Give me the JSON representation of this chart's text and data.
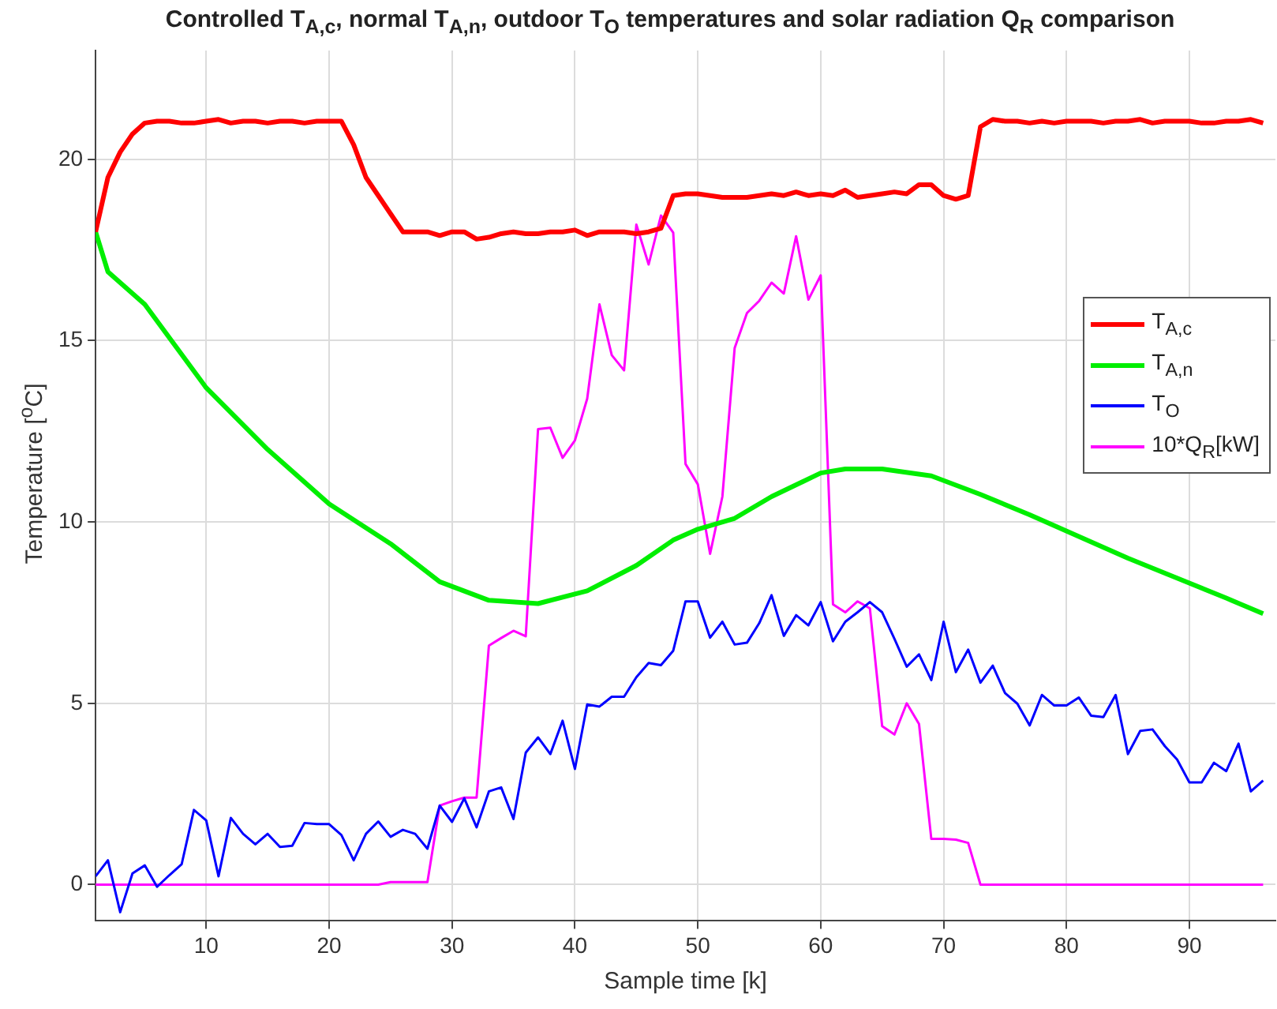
{
  "chart_data": {
    "type": "line",
    "title": "Controlled T$_{A,c}$, normal T$_{A,n}$, outdoor T$_{O}$ temperatures and solar radiation Q$_{R}$ comparison",
    "xlabel": "Sample time [k]",
    "ylabel": "Temperature [$^{o}$C]",
    "x": [
      1,
      2,
      3,
      4,
      5,
      6,
      7,
      8,
      9,
      10,
      11,
      12,
      13,
      14,
      15,
      16,
      17,
      18,
      19,
      20,
      21,
      22,
      23,
      24,
      25,
      26,
      27,
      28,
      29,
      30,
      31,
      32,
      33,
      34,
      35,
      36,
      37,
      38,
      39,
      40,
      41,
      42,
      43,
      44,
      45,
      46,
      47,
      48,
      49,
      50,
      51,
      52,
      53,
      54,
      55,
      56,
      57,
      58,
      59,
      60,
      61,
      62,
      63,
      64,
      65,
      66,
      67,
      68,
      69,
      70,
      71,
      72,
      73,
      74,
      75,
      76,
      77,
      78,
      79,
      80,
      81,
      82,
      83,
      84,
      85,
      86,
      87,
      88,
      89,
      90,
      91,
      92,
      93,
      94,
      95,
      96
    ],
    "series": [
      {
        "name": "T$_{A,c}$",
        "color": "#ff0000",
        "values": [
          18,
          19.5,
          20.2,
          20.7,
          21,
          21.05,
          21.05,
          21,
          21,
          21.05,
          21.1,
          21,
          21.05,
          21.05,
          21,
          21.05,
          21.05,
          21,
          21.05,
          21.05,
          21.05,
          20.4,
          19.5,
          19,
          18.5,
          18,
          18,
          18,
          17.9,
          18,
          18,
          17.8,
          17.85,
          17.95,
          18,
          17.95,
          17.95,
          18,
          18,
          18.05,
          17.9,
          18,
          18,
          18,
          17.95,
          18,
          18.1,
          19,
          19.05,
          19.05,
          19,
          18.95,
          18.95,
          18.95,
          19,
          19.05,
          19,
          19.1,
          19,
          19.05,
          19,
          19.15,
          18.95,
          19,
          19.05,
          19.1,
          19.05,
          19.3,
          19.3,
          19,
          18.9,
          19,
          20.9,
          21.1,
          21.05,
          21.05,
          21,
          21.05,
          21,
          21.05,
          21.05,
          21.05,
          21,
          21.05,
          21.05,
          21.1,
          21,
          21.05,
          21.05,
          21.05,
          21,
          21,
          21.05,
          21.05,
          21.1,
          21
        ]
      },
      {
        "name": "T$_{A,n}$",
        "color": "#00ee00",
        "x": [
          1,
          2,
          5,
          10,
          15,
          20,
          25,
          29,
          33,
          37,
          41,
          45,
          48,
          50,
          53,
          56,
          60,
          62,
          65,
          69,
          73,
          77,
          81,
          85,
          89,
          93,
          96
        ],
        "values": [
          18,
          16.9,
          16,
          13.7,
          12,
          10.5,
          9.4,
          8.35,
          7.84,
          7.75,
          8.1,
          8.8,
          9.5,
          9.8,
          10.1,
          10.7,
          11.35,
          11.46,
          11.46,
          11.27,
          10.76,
          10.2,
          9.6,
          9,
          8.45,
          7.9,
          7.47
        ]
      },
      {
        "name": "T$_{O}$",
        "color": "#0000ff",
        "values": [
          0.23,
          0.67,
          -0.76,
          0.31,
          0.53,
          -0.06,
          0.26,
          0.56,
          2.06,
          1.77,
          0.23,
          1.84,
          1.4,
          1.11,
          1.4,
          1.04,
          1.07,
          1.7,
          1.67,
          1.67,
          1.37,
          0.67,
          1.4,
          1.74,
          1.32,
          1.51,
          1.4,
          0.99,
          2.18,
          1.73,
          2.38,
          1.58,
          2.57,
          2.68,
          1.81,
          3.64,
          4.06,
          3.6,
          4.52,
          3.19,
          4.97,
          4.91,
          5.18,
          5.18,
          5.72,
          6.11,
          6.05,
          6.45,
          7.81,
          7.81,
          6.81,
          7.25,
          6.62,
          6.67,
          7.21,
          7.98,
          6.86,
          7.43,
          7.15,
          7.79,
          6.71,
          7.25,
          7.51,
          7.79,
          7.51,
          6.78,
          6.01,
          6.35,
          5.64,
          7.25,
          5.86,
          6.48,
          5.57,
          6.04,
          5.28,
          4.99,
          4.39,
          5.23,
          4.94,
          4.94,
          5.16,
          4.66,
          4.62,
          5.23,
          3.6,
          4.24,
          4.28,
          3.82,
          3.45,
          2.82,
          2.82,
          3.36,
          3.13,
          3.89,
          2.57,
          2.87
        ]
      },
      {
        "name": "10*Q$_{R}$[kW]",
        "color": "#ff00ff",
        "values": [
          0,
          0,
          0,
          0,
          0,
          0,
          0,
          0,
          0,
          0,
          0,
          0,
          0,
          0,
          0,
          0,
          0,
          0,
          0,
          0,
          0,
          0,
          0,
          0,
          0.07,
          0.07,
          0.07,
          0.07,
          2.18,
          2.3,
          2.4,
          2.4,
          6.59,
          6.8,
          7,
          6.85,
          12.56,
          12.6,
          11.77,
          12.25,
          13.4,
          16,
          14.6,
          14.18,
          18.2,
          17.1,
          18.45,
          17.98,
          11.6,
          11.04,
          9.12,
          10.7,
          14.8,
          15.76,
          16.1,
          16.6,
          16.3,
          17.88,
          16.13,
          16.8,
          7.73,
          7.51,
          7.81,
          7.62,
          4.37,
          4.14,
          5,
          4.43,
          1.26,
          1.26,
          1.24,
          1.15,
          0,
          0,
          0,
          0,
          0,
          0,
          0,
          0,
          0,
          0,
          0,
          0,
          0,
          0,
          0,
          0,
          0,
          0,
          0,
          0,
          0,
          0,
          0,
          0
        ]
      }
    ],
    "xlim": [
      1,
      97
    ],
    "xticks": [
      10,
      20,
      30,
      40,
      50,
      60,
      70,
      80,
      90
    ],
    "ylim": [
      -1,
      23
    ],
    "yticks": [
      0,
      5,
      10,
      15,
      20
    ],
    "grid": true,
    "legend": "right",
    "marker": "none",
    "line_style": "solid"
  }
}
